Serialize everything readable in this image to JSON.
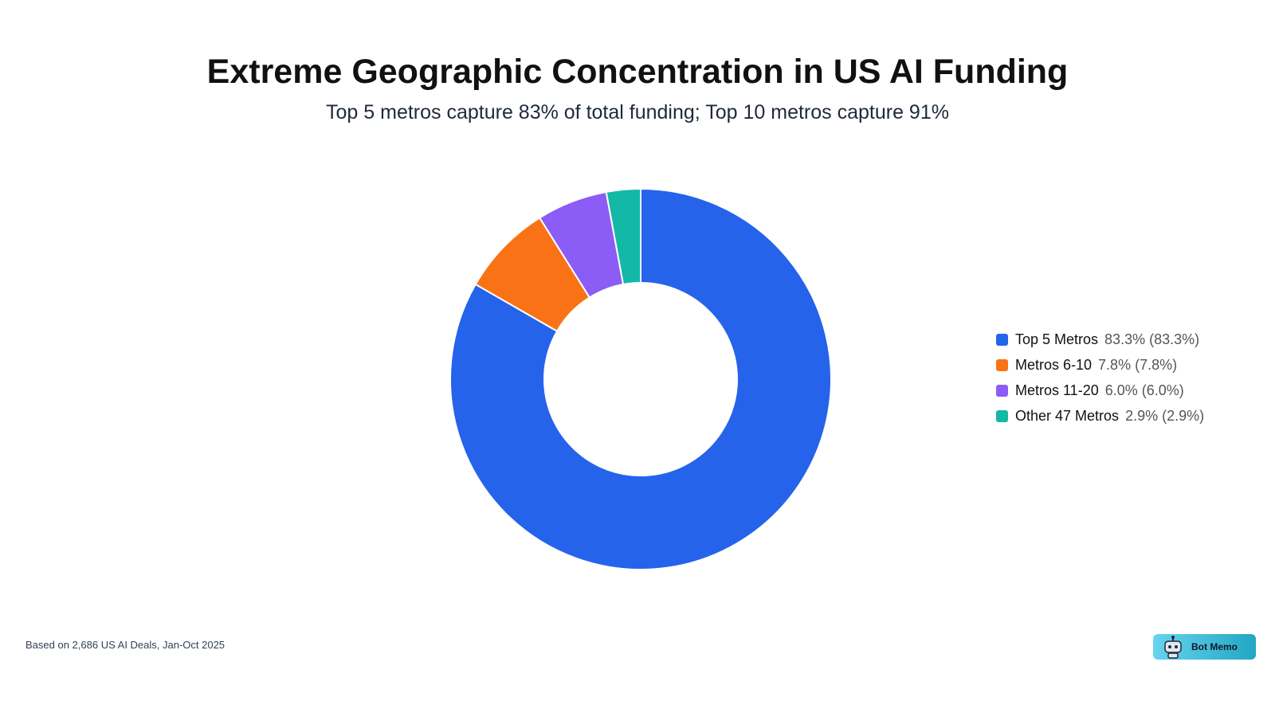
{
  "chart_data": {
    "type": "pie",
    "donut": true,
    "title": "Extreme Geographic Concentration in US AI Funding",
    "subtitle": "Top 5 metros capture 83% of total funding; Top 10 metros capture 91%",
    "categories": [
      "Top 5 Metros",
      "Metros 6-10",
      "Metros 11-20",
      "Other 47 Metros"
    ],
    "values": [
      83.3,
      7.8,
      6.0,
      2.9
    ],
    "value_labels": [
      "83.3% (83.3%)",
      "7.8% (7.8%)",
      "6.0% (6.0%)",
      "2.9% (2.9%)"
    ],
    "colors": [
      "#2563eb",
      "#f97316",
      "#8b5cf6",
      "#14b8a6"
    ],
    "legend": "right"
  },
  "footer": "Based on 2,686 US AI Deals, Jan-Oct 2025",
  "badge": "Bot Memo"
}
